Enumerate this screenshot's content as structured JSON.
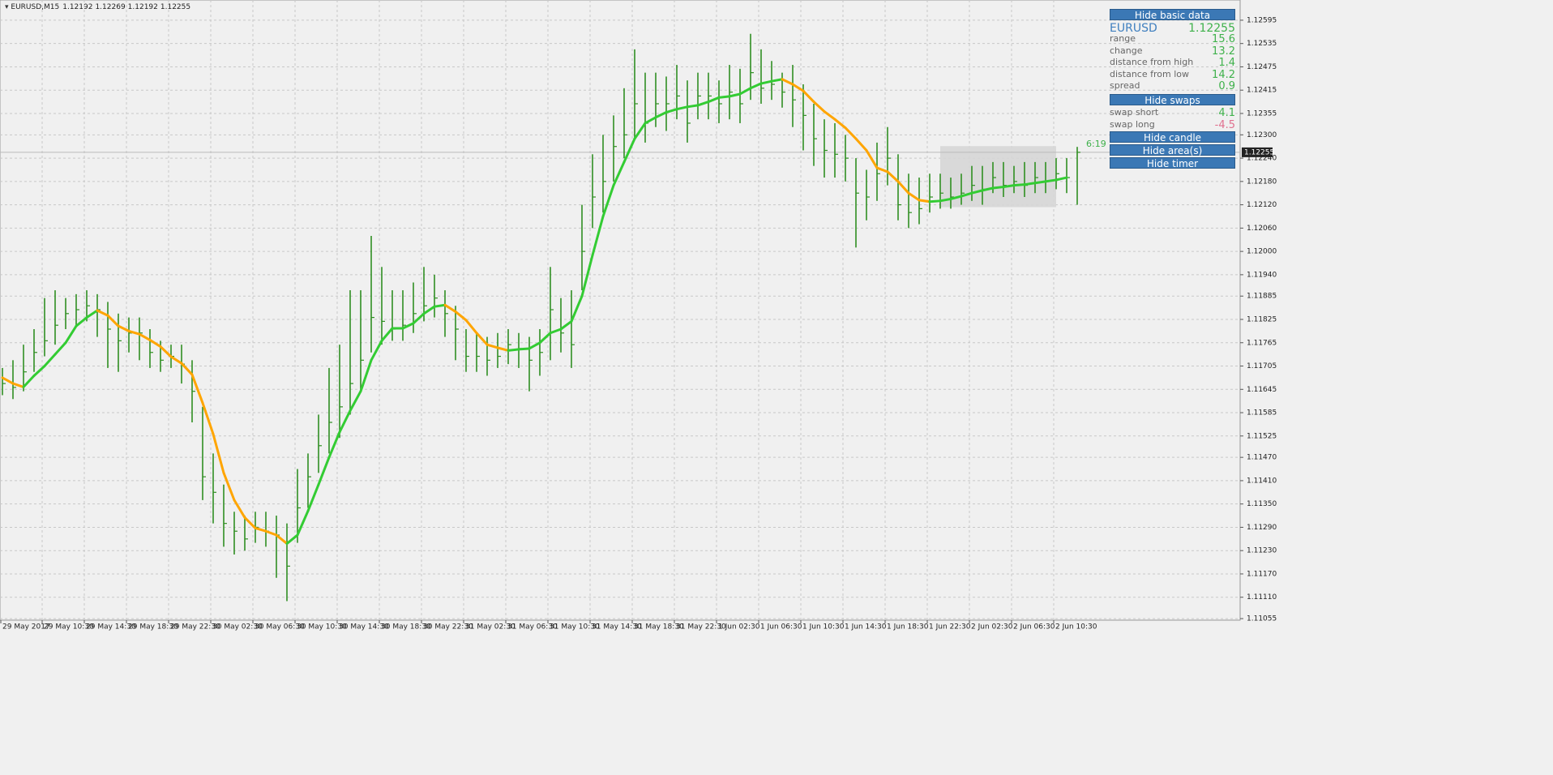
{
  "header": {
    "symbol": "EURUSD,M15",
    "ohlc": [
      1.12192,
      1.12269,
      1.12192,
      1.12255
    ]
  },
  "chart_data": {
    "type": "ohlc",
    "color": "#2f8f22",
    "ylim": [
      1.11051,
      1.12647
    ],
    "yticks": [
      1.12595,
      1.12535,
      1.12475,
      1.12415,
      1.12355,
      {
        "value": 1.123,
        "label": "1.12300"
      },
      {
        "value": 1.1224,
        "label": "1.12240"
      },
      {
        "value": 1.1218,
        "label": "1.12180"
      },
      {
        "value": 1.1212,
        "label": "1.12120"
      },
      {
        "value": 1.1206,
        "label": "1.12060"
      },
      {
        "value": 1.12,
        "label": "1.12000"
      },
      {
        "value": 1.1194,
        "label": "1.11940"
      },
      1.11885,
      1.11825,
      1.11765,
      1.11705,
      1.11645,
      1.11585,
      1.11525,
      {
        "value": 1.1147,
        "label": "1.11470"
      },
      {
        "value": 1.1141,
        "label": "1.11410"
      },
      {
        "value": 1.1135,
        "label": "1.11350"
      },
      {
        "value": 1.1129,
        "label": "1.11290"
      },
      {
        "value": 1.1123,
        "label": "1.11230"
      },
      {
        "value": 1.1117,
        "label": "1.11170"
      },
      {
        "value": 1.1111,
        "label": "1.11110"
      },
      1.11055
    ],
    "xtick_labels": [
      "29 May 2017",
      "29 May 10:30",
      "29 May 14:30",
      "29 May 18:30",
      "29 May 22:30",
      "30 May 02:30",
      "30 May 06:30",
      "30 May 10:30",
      "30 May 14:30",
      "30 May 18:30",
      "30 May 22:30",
      "31 May 02:30",
      "31 May 06:30",
      "31 May 10:30",
      "31 May 14:30",
      "31 May 18:30",
      "31 May 22:30",
      "1 Jun 02:30",
      "1 Jun 06:30",
      "1 Jun 10:30",
      "1 Jun 14:30",
      "1 Jun 18:30",
      "1 Jun 22:30",
      "2 Jun 02:30",
      "2 Jun 06:30",
      "2 Jun 10:30"
    ],
    "high": [
      1.117,
      1.1172,
      1.1176,
      1.118,
      1.1188,
      1.119,
      1.1188,
      1.1189,
      1.119,
      1.1189,
      1.1187,
      1.1184,
      1.1183,
      1.1183,
      1.118,
      1.1177,
      1.1176,
      1.1176,
      1.1172,
      1.116,
      1.1148,
      1.114,
      1.1133,
      1.1132,
      1.1133,
      1.1133,
      1.1132,
      1.113,
      1.1144,
      1.1148,
      1.1158,
      1.117,
      1.1176,
      1.119,
      1.119,
      1.1204,
      1.1196,
      1.119,
      1.119,
      1.1192,
      1.1196,
      1.1194,
      1.119,
      1.1186,
      1.118,
      1.1179,
      1.1178,
      1.1179,
      1.118,
      1.1179,
      1.1178,
      1.118,
      1.1196,
      1.1188,
      1.119,
      1.1212,
      1.1225,
      1.123,
      1.1235,
      1.1242,
      1.1252,
      1.1246,
      1.1246,
      1.1245,
      1.1248,
      1.1244,
      1.1246,
      1.1246,
      1.1244,
      1.1248,
      1.1247,
      1.1256,
      1.1252,
      1.1249,
      1.1246,
      1.1248,
      1.1243,
      1.1238,
      1.1234,
      1.1233,
      1.123,
      1.1224,
      1.1221,
      1.1228,
      1.1232,
      1.1225,
      1.122,
      1.1219,
      1.122,
      1.122,
      1.1219,
      1.122,
      1.1222,
      1.1222,
      1.1223,
      1.1223,
      1.1222,
      1.1223,
      1.1223,
      1.1223,
      1.1224,
      1.1224,
      1.12269
    ],
    "low": [
      1.1163,
      1.1162,
      1.1164,
      1.1169,
      1.1173,
      1.1176,
      1.118,
      1.1181,
      1.1182,
      1.1178,
      1.117,
      1.1169,
      1.1174,
      1.1172,
      1.117,
      1.1169,
      1.117,
      1.1166,
      1.1156,
      1.1136,
      1.113,
      1.1124,
      1.1122,
      1.1123,
      1.1125,
      1.1124,
      1.1116,
      1.111,
      1.1125,
      1.1134,
      1.1143,
      1.1148,
      1.1152,
      1.1158,
      1.1164,
      1.1174,
      1.1176,
      1.1177,
      1.1177,
      1.1179,
      1.1182,
      1.1183,
      1.1178,
      1.1172,
      1.1169,
      1.1169,
      1.1168,
      1.117,
      1.1171,
      1.117,
      1.1164,
      1.1168,
      1.1172,
      1.1174,
      1.117,
      1.119,
      1.1206,
      1.121,
      1.1218,
      1.1224,
      1.1229,
      1.1228,
      1.1232,
      1.1231,
      1.1234,
      1.1228,
      1.1234,
      1.1234,
      1.1233,
      1.1234,
      1.1233,
      1.1239,
      1.1238,
      1.1239,
      1.1237,
      1.1232,
      1.1226,
      1.1222,
      1.1219,
      1.1219,
      1.1218,
      1.1201,
      1.1208,
      1.1213,
      1.1217,
      1.1208,
      1.1206,
      1.1207,
      1.121,
      1.1211,
      1.1211,
      1.1212,
      1.1213,
      1.1212,
      1.1215,
      1.1214,
      1.1215,
      1.1214,
      1.1215,
      1.1215,
      1.1216,
      1.1215,
      1.1212
    ],
    "close": [
      1.1166,
      1.1165,
      1.1169,
      1.1174,
      1.1177,
      1.1181,
      1.1184,
      1.1185,
      1.1186,
      1.1185,
      1.118,
      1.1177,
      1.1179,
      1.1179,
      1.1174,
      1.1172,
      1.1173,
      1.1171,
      1.1164,
      1.1142,
      1.1138,
      1.113,
      1.1128,
      1.1126,
      1.1129,
      1.1128,
      1.1127,
      1.1119,
      1.1134,
      1.1142,
      1.115,
      1.1156,
      1.116,
      1.1166,
      1.1172,
      1.1183,
      1.1182,
      1.118,
      1.1181,
      1.1184,
      1.1186,
      1.1188,
      1.1184,
      1.118,
      1.1173,
      1.1173,
      1.1172,
      1.1173,
      1.1176,
      1.1175,
      1.1172,
      1.1174,
      1.1185,
      1.1179,
      1.1176,
      1.12,
      1.1214,
      1.1218,
      1.1227,
      1.123,
      1.1238,
      1.1233,
      1.1238,
      1.1238,
      1.124,
      1.1233,
      1.124,
      1.124,
      1.1238,
      1.1241,
      1.1238,
      1.1246,
      1.1242,
      1.1243,
      1.1241,
      1.1239,
      1.1235,
      1.1229,
      1.1226,
      1.1225,
      1.1224,
      1.1215,
      1.1214,
      1.122,
      1.1224,
      1.1212,
      1.121,
      1.1211,
      1.1214,
      1.1215,
      1.1214,
      1.1215,
      1.1217,
      1.1216,
      1.1219,
      1.1217,
      1.1218,
      1.1217,
      1.1219,
      1.1218,
      1.122,
      1.1219,
      1.12255
    ],
    "ma": [
      1.11675,
      1.1166,
      1.11651,
      1.1168,
      1.11705,
      1.11735,
      1.11765,
      1.11808,
      1.1183,
      1.11848,
      1.11835,
      1.11808,
      1.11795,
      1.11787,
      1.11772,
      1.11755,
      1.11729,
      1.11712,
      1.11683,
      1.1161,
      1.1153,
      1.1143,
      1.1136,
      1.11315,
      1.11288,
      1.1128,
      1.1127,
      1.11248,
      1.1127,
      1.11332,
      1.114,
      1.1147,
      1.11535,
      1.1159,
      1.1164,
      1.1172,
      1.1177,
      1.11802,
      1.11802,
      1.11815,
      1.1184,
      1.11858,
      1.11862,
      1.11845,
      1.11823,
      1.1179,
      1.1176,
      1.11752,
      1.11745,
      1.11748,
      1.1175,
      1.11765,
      1.1179,
      1.118,
      1.1182,
      1.11885,
      1.1199,
      1.1209,
      1.1217,
      1.1223,
      1.1229,
      1.1233,
      1.12345,
      1.12358,
      1.12366,
      1.12372,
      1.12376,
      1.12385,
      1.12396,
      1.12399,
      1.12405,
      1.1242,
      1.12432,
      1.12438,
      1.12443,
      1.1243,
      1.12413,
      1.12385,
      1.1236,
      1.1234,
      1.12318,
      1.1229,
      1.1226,
      1.12215,
      1.12205,
      1.1218,
      1.1215,
      1.12132,
      1.12128,
      1.1213,
      1.12135,
      1.12142,
      1.1215,
      1.12157,
      1.12163,
      1.12166,
      1.1217,
      1.12172,
      1.12176,
      1.1218,
      1.12184,
      1.1219,
      null
    ],
    "up_color": "#33cc33",
    "down_color": "#ffa500",
    "area": {
      "high": 1.12271,
      "low": 1.12114
    },
    "grid": true
  },
  "panel": {
    "buttons": [
      "Hide basic data",
      "Hide swaps",
      "Hide candle",
      "Hide area(s)",
      "Hide timer"
    ],
    "symbol": "EURUSD",
    "price": 1.12255,
    "rows": [
      {
        "label": "range",
        "value": 15.6
      },
      {
        "label": "change",
        "value": 13.2
      },
      {
        "label": "distance from high",
        "value": 1.4
      },
      {
        "label": "distance from low",
        "value": 14.2
      },
      {
        "label": "spread",
        "value": 0.9
      }
    ],
    "swaps": [
      {
        "label": "swap short",
        "value": 4.1
      },
      {
        "label": "swap long",
        "value": -4.5
      }
    ],
    "timer": "6:19"
  }
}
